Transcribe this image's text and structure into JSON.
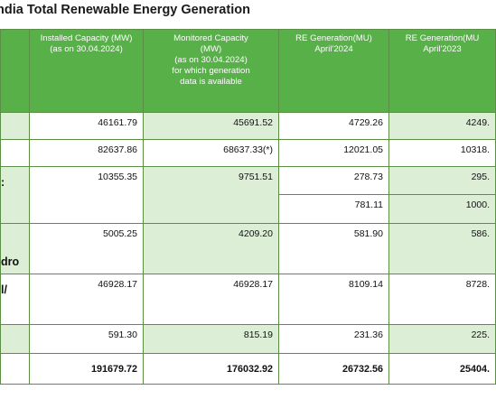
{
  "title": "ndia Total Renewable Energy Generation",
  "headers": [
    {
      "line1": "Installed Capacity (MW)",
      "line2": "(as on 30.04.2024)"
    },
    {
      "line1": "Monitored Capacity",
      "line2": "(MW)",
      "line3": "(as on 30.04.2024)",
      "line4": "for which generation",
      "line5": "data is available"
    },
    {
      "line1": "RE Generation(MU)",
      "line2": "April'2024"
    },
    {
      "line1": "RE Generation(MU",
      "line2": "April'2023"
    }
  ],
  "rows": [
    {
      "label": "",
      "installed": "46161.79",
      "monitored": "45691.52",
      "gen2024": "4729.26",
      "gen2023": "4249."
    },
    {
      "label": "",
      "installed": "82637.86",
      "monitored": "68637.33(*)",
      "gen2024": "12021.05",
      "gen2023": "10318."
    },
    {
      "label": ":",
      "installed": "10355.35",
      "monitored": "9751.51",
      "gen2024": "278.73",
      "gen2023": "295."
    },
    {
      "label": "",
      "installed": "",
      "monitored": "",
      "gen2024": "781.11",
      "gen2023": "1000."
    },
    {
      "label": "dro",
      "installed": "5005.25",
      "monitored": "4209.20",
      "gen2024": "581.90",
      "gen2023": "586."
    },
    {
      "label": "l/",
      "installed": "46928.17",
      "monitored": "46928.17",
      "gen2024": "8109.14",
      "gen2023": "8728."
    },
    {
      "label": "",
      "installed": "591.30",
      "monitored": "815.19",
      "gen2024": "231.36",
      "gen2023": "225."
    },
    {
      "label": "",
      "installed": "191679.72",
      "monitored": "176032.92",
      "gen2024": "26732.56",
      "gen2023": "25404."
    }
  ]
}
